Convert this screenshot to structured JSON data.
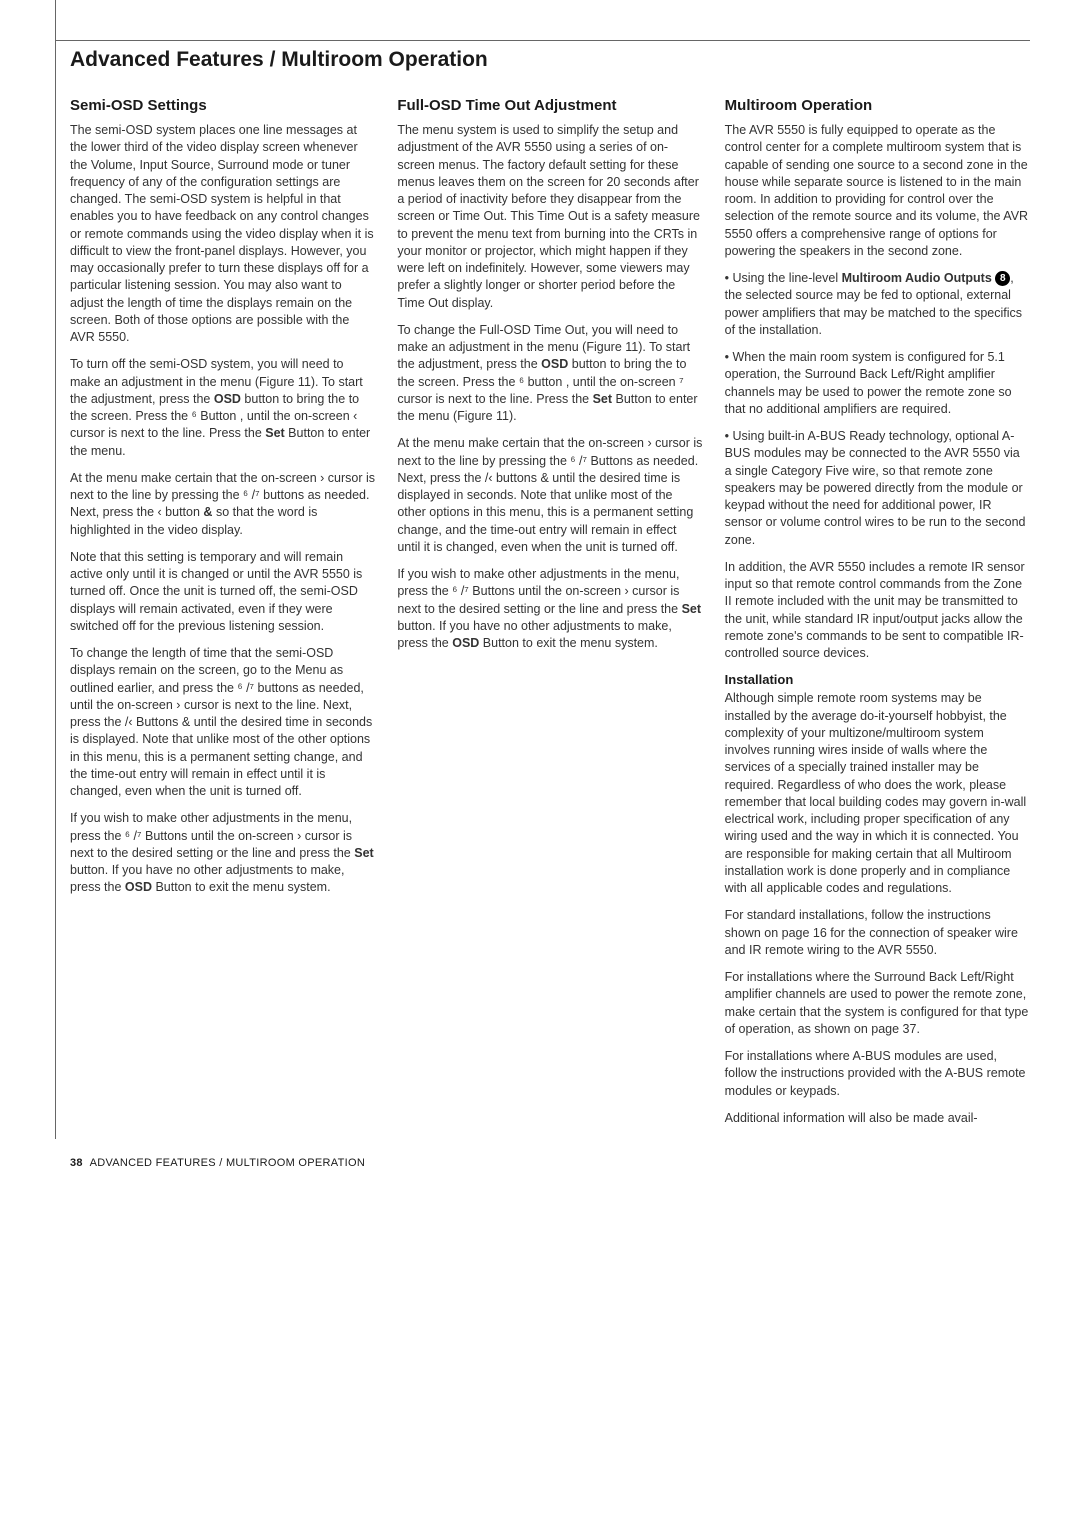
{
  "page": {
    "title": "Advanced Features / Multiroom Operation",
    "footer_number": "38",
    "footer_text": "ADVANCED FEATURES / MULTIROOM OPERATION"
  },
  "col1": {
    "h": "Semi-OSD Settings",
    "p1": "The semi-OSD system places one line messages at the lower third of the video display screen whenever the Volume, Input Source, Surround mode or tuner frequency of any of the configuration settings are changed. The semi-OSD system is helpful in that enables you to have feedback on any control changes or remote commands using the video display when it is difficult to view the front-panel displays. However, you may occasionally prefer to turn these displays off for a particular listening session. You may also want to adjust the length of time the displays remain on the screen. Both of those options are possible with the AVR 5550.",
    "p2a": "To turn off the semi-OSD system, you will need to make an adjustment in the",
    "p2b": "menu (Figure 11). To start the adjustment, press the ",
    "p2c": " button",
    "p2d": "to bring the",
    "p2e": "to the screen. Press the",
    "p2f": "Button",
    "p2g": ", until the on-screen ‹ cursor is next to the",
    "p2h": "line. Press the ",
    "p2i": " Button",
    "p2j": "to enter the",
    "p2k": "menu.",
    "p3a": "At the",
    "p3b": "menu make certain that the on-screen › cursor is next to the",
    "p3c": "line by pressing the ⁶ /⁷ buttons",
    "p3d": "as needed. Next, press the ‹ button",
    "p3e": "so that the word",
    "p3f": "is highlighted in the video display.",
    "p4": "Note that this setting is temporary and will remain active only until it is changed or until the AVR 5550 is turned off. Once the unit is turned off, the semi-OSD displays will remain activated, even if they were switched off for the previous listening session.",
    "p5a": "To change the length of time that the semi-OSD displays remain on the screen, go to the",
    "p5b": "Menu as outlined earlier, and press the ⁶ /⁷ buttons",
    "p5c": "as needed, until the on-screen › cursor is next to the",
    "p5d": "line. Next, press the    /‹ Buttons  &",
    "p5e": "until the desired time in seconds is displayed. Note that unlike most of the other options in this menu, this is a permanent setting change, and the time-out entry will remain in effect until it is changed, even when the unit is turned off.",
    "p6a": "If you wish to make other adjustments in the menu, press the ⁶ /⁷ Buttons",
    "p6b": "until the on-screen › cursor is next to the desired setting or the",
    "p6c": "line and press the ",
    "p6d": " button",
    "p6e": ". If you have no other adjustments to make, press the ",
    "p6f": " Button",
    "p6g": "to exit the menu system."
  },
  "col2": {
    "h": "Full-OSD Time Out Adjustment",
    "p1": "The                       menu system is used to simplify the setup and adjustment of the AVR 5550 using a series of on-screen menus. The factory default setting for these menus leaves them on the screen for 20 seconds after a period of inactivity before they disappear from the screen or Time Out. This Time Out is a safety measure to prevent the menu text from burning into the CRTs in your monitor or projector, which might happen if they were left on indefinitely. However, some viewers may prefer a slightly longer or shorter period before the Time Out display.",
    "p2a": "To change the Full-OSD Time Out, you will need to make an adjustment in the",
    "p2b": "menu (Figure 11). To start the adjustment, press the ",
    "p2c": " button",
    "p2d": "to bring the",
    "p2e": "to the screen. Press the",
    "p2f": "button",
    "p2g": ", until the on-screen ⁷ cursor is next to the",
    "p2h": "line. Press the ",
    "p2i": " Button",
    "p2j": "to enter the",
    "p2k": "menu (Figure 11).",
    "p3a": "At the",
    "p3b": "menu make certain that the on-screen › cursor is next to the",
    "p3c": "line by pressing the ⁶ /⁷ Buttons",
    "p3d": "as needed. Next, press the    /‹ buttons  &",
    "p3e": "until the desired time is displayed in seconds. Note that unlike most of the other options in this menu, this is a permanent setting change, and the time-out entry will remain in effect until it is changed, even when the unit is turned off.",
    "p4a": "If you wish to make other adjustments in the menu, press the ⁶ /⁷ Buttons",
    "p4b": "until the on-screen › cursor is next to the desired setting or the",
    "p4c": "line and press the ",
    "p4d": " button",
    "p4e": ". If you have no other adjustments to make, press the ",
    "p4f": " Button",
    "p4g": "to exit the menu system."
  },
  "col3": {
    "h": "Multiroom Operation",
    "p1": "The AVR 5550 is fully equipped to operate as the control center for a complete multiroom system that is capable of sending one source to a second zone in the house while separate source is listened to in the main room. In addition to providing for control over the selection of the remote source and its volume, the AVR 5550 offers a comprehensive range of options for powering the speakers in the second zone.",
    "p2a": "• Using the line-level ",
    "p2b": "Multiroom Audio Outputs ",
    "p2c": ", the selected source may be fed to optional, external power amplifiers that may be matched to the specifics of the installation.",
    "p3": "• When the main room system is configured for 5.1 operation, the Surround Back Left/Right amplifier channels may be used to power the remote zone so that no additional amplifiers are required.",
    "p4": "• Using built-in A-BUS Ready technology, optional A-BUS modules may be connected to the AVR 5550 via a single Category Five wire, so that remote zone speakers may be powered directly from the module or keypad without the need for additional power, IR sensor or volume control wires to be run to the second zone.",
    "p5": "In addition, the AVR 5550 includes a remote IR sensor input so that remote control commands from the Zone II remote included with the unit may be transmitted to the unit, while standard IR input/output jacks allow the remote zone's commands to be sent to compatible IR-controlled source devices.",
    "h2": "Installation",
    "p6": "Although simple remote room systems may be installed by the average do-it-yourself hobbyist, the complexity of your multizone/multiroom system involves running wires inside of walls where the services of a specially trained installer may be required. Regardless of who does the work, please remember that local building codes may govern in-wall electrical work, including proper specification of any wiring used and the way in which it is connected. You are responsible for making certain that all Multiroom installation work is done properly and in compliance with all applicable codes and regulations.",
    "p7": "For standard installations, follow the instructions shown on page 16 for the connection of speaker wire and IR remote wiring to the AVR 5550.",
    "p8": "For installations where the Surround Back Left/Right amplifier channels are used to power the remote zone, make certain that the system is configured for that type of operation, as shown on page 37.",
    "p9": "For installations where A-BUS modules are used, follow the instructions provided with the A-BUS remote modules or keypads.",
    "p10": "Additional information will also be made avail-"
  },
  "labels": {
    "osd": "OSD",
    "set": "Set",
    "amp": "&",
    "six": "⁶",
    "seven": "⁷",
    "circled8": "8"
  }
}
